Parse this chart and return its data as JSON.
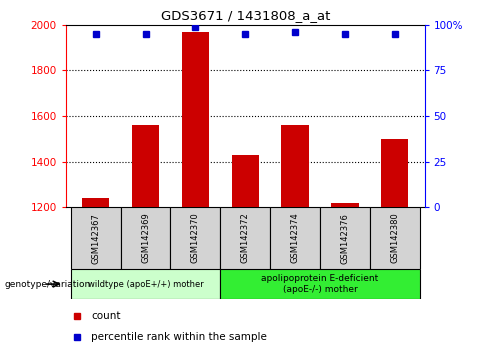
{
  "title": "GDS3671 / 1431808_a_at",
  "categories": [
    "GSM142367",
    "GSM142369",
    "GSM142370",
    "GSM142372",
    "GSM142374",
    "GSM142376",
    "GSM142380"
  ],
  "counts": [
    1240,
    1560,
    1970,
    1430,
    1560,
    1220,
    1500
  ],
  "percentiles": [
    95,
    95,
    99,
    95,
    96,
    95,
    95
  ],
  "ylim_left": [
    1200,
    2000
  ],
  "ylim_right": [
    0,
    100
  ],
  "bar_color": "#cc0000",
  "dot_color": "#0000cc",
  "group1_label": "wildtype (apoE+/+) mother",
  "group2_label": "apolipoprotein E-deficient\n(apoE-/-) mother",
  "group1_indices": [
    0,
    1,
    2
  ],
  "group2_indices": [
    3,
    4,
    5,
    6
  ],
  "group1_color": "#ccffcc",
  "group2_color": "#33ee33",
  "legend_count_label": "count",
  "legend_percentile_label": "percentile rank within the sample",
  "xlabel_group": "genotype/variation",
  "tick_left": [
    1200,
    1400,
    1600,
    1800,
    2000
  ],
  "tick_right": [
    0,
    25,
    50,
    75,
    100
  ],
  "tick_right_labels": [
    "0",
    "25",
    "50",
    "75",
    "100%"
  ],
  "grid_ticks": [
    1400,
    1600,
    1800
  ]
}
